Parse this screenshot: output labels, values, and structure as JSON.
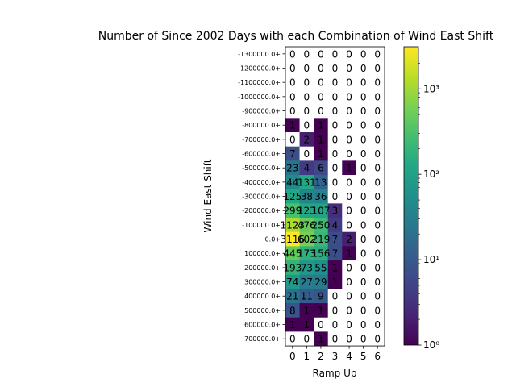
{
  "chart_data": {
    "type": "heatmap",
    "title": "Number of Since 2002 Days with each Combination of Wind East Shift",
    "xlabel": "Ramp Up",
    "ylabel": "Wind East Shift",
    "x_ticks": [
      "0",
      "1",
      "2",
      "3",
      "4",
      "5",
      "6"
    ],
    "y_ticks": [
      "-1300000.0+",
      "-1200000.0+",
      "-1100000.0+",
      "-1000000.0+",
      "-900000.0+",
      "-800000.0+",
      "-700000.0+",
      "-600000.0+",
      "-500000.0+",
      "-400000.0+",
      "-300000.0+",
      "-200000.0+",
      "-100000.0+",
      "0.0+",
      "100000.0+",
      "200000.0+",
      "300000.0+",
      "400000.0+",
      "500000.0+",
      "600000.0+",
      "700000.0+"
    ],
    "cell_labels": [
      [
        "0",
        "0",
        "0",
        "0",
        "0",
        "0",
        "0"
      ],
      [
        "0",
        "0",
        "0",
        "0",
        "0",
        "0",
        "0"
      ],
      [
        "0",
        "0",
        "0",
        "0",
        "0",
        "0",
        "0"
      ],
      [
        "0",
        "0",
        "0",
        "0",
        "0",
        "0",
        "0"
      ],
      [
        "0",
        "0",
        "0",
        "0",
        "0",
        "0",
        "0"
      ],
      [
        "1",
        "0",
        "1",
        "0",
        "0",
        "0",
        "0"
      ],
      [
        "0",
        "2",
        "1",
        "0",
        "0",
        "0",
        "0"
      ],
      [
        "7",
        "0",
        "1",
        "0",
        "0",
        "0",
        "0"
      ],
      [
        "23",
        "4",
        "6",
        "0",
        "1",
        "0",
        "0"
      ],
      [
        "44",
        "131",
        "13",
        "0",
        "0",
        "0",
        "0"
      ],
      [
        "125",
        "38",
        "36",
        "0",
        "0",
        "0",
        "0"
      ],
      [
        "299",
        "123",
        "107",
        "3",
        "0",
        "0",
        "0"
      ],
      [
        "1123",
        "476",
        "250",
        "4",
        "0",
        "0",
        "0"
      ],
      [
        "3116",
        "602",
        "219",
        "7",
        "2",
        "0",
        "0"
      ],
      [
        "445",
        "173",
        "156",
        "7",
        "1",
        "0",
        "0"
      ],
      [
        "193",
        "73",
        "55",
        "1",
        "0",
        "0",
        "0"
      ],
      [
        "74",
        "27",
        "29",
        "1",
        "0",
        "0",
        "0"
      ],
      [
        "21",
        "11",
        "9",
        "0",
        "0",
        "0",
        "0"
      ],
      [
        "8",
        "1",
        "1",
        "0",
        "0",
        "0",
        "0"
      ],
      [
        "1",
        "1",
        "0",
        "0",
        "0",
        "0",
        "0"
      ],
      [
        "0",
        "0",
        "1",
        "0",
        "0",
        "0",
        "0"
      ]
    ],
    "values": [
      [
        0,
        0,
        0,
        0,
        0,
        0,
        0
      ],
      [
        0,
        0,
        0,
        0,
        0,
        0,
        0
      ],
      [
        0,
        0,
        0,
        0,
        0,
        0,
        0
      ],
      [
        0,
        0,
        0,
        0,
        0,
        0,
        0
      ],
      [
        0,
        0,
        0,
        0,
        0,
        0,
        0
      ],
      [
        1,
        0,
        1,
        0,
        0,
        0,
        0
      ],
      [
        0,
        2,
        1,
        0,
        0,
        0,
        0
      ],
      [
        7,
        0,
        1,
        0,
        0,
        0,
        0
      ],
      [
        23,
        4,
        6,
        0,
        1,
        0,
        0
      ],
      [
        44,
        131,
        13,
        0,
        0,
        0,
        0
      ],
      [
        125,
        38,
        36,
        0,
        0,
        0,
        0
      ],
      [
        299,
        123,
        107,
        3,
        0,
        0,
        0
      ],
      [
        1123,
        476,
        250,
        4,
        0,
        0,
        0
      ],
      [
        3116,
        602,
        219,
        7,
        2,
        0,
        0
      ],
      [
        445,
        173,
        156,
        7,
        1,
        0,
        0
      ],
      [
        193,
        73,
        55,
        1,
        0,
        0,
        0
      ],
      [
        74,
        27,
        29,
        1,
        0,
        0,
        0
      ],
      [
        21,
        11,
        9,
        0,
        0,
        0,
        0
      ],
      [
        8,
        1,
        1,
        0,
        0,
        0,
        0
      ],
      [
        1,
        1,
        0,
        0,
        0,
        0,
        0
      ],
      [
        0,
        0,
        1,
        0,
        0,
        0,
        0
      ]
    ],
    "colorbar": {
      "scale": "log",
      "range": [
        1,
        3116
      ],
      "colormap": "viridis",
      "tick_labels": [
        "10⁰",
        "10¹",
        "10²",
        "10³"
      ],
      "tick_values": [
        1,
        10,
        100,
        1000
      ]
    },
    "zero_color": "#ffffff",
    "grid": false
  }
}
